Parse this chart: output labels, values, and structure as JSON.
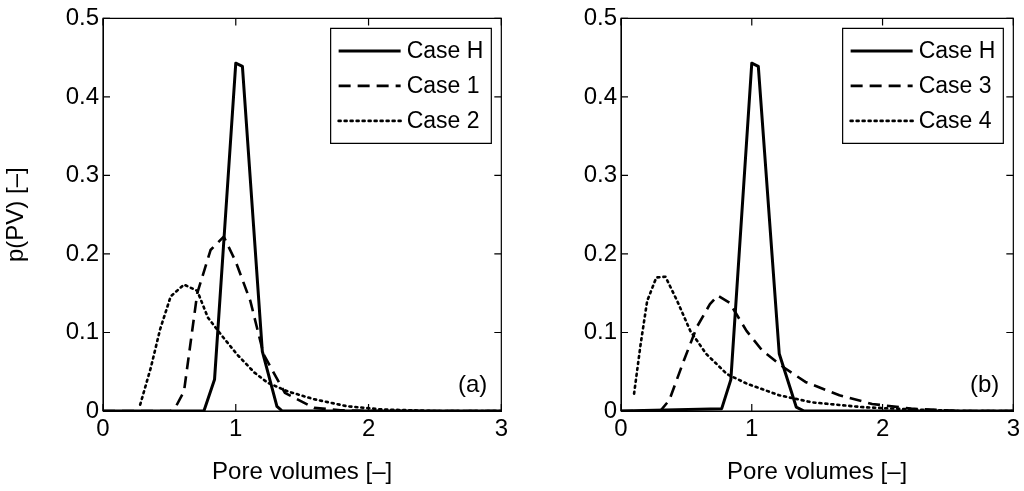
{
  "chart_data": [
    {
      "type": "line",
      "xlabel": "Pore volumes [–]",
      "ylabel": "p(PV) [–]",
      "xlim": [
        0,
        3
      ],
      "ylim": [
        0,
        0.5
      ],
      "xticks": [
        0,
        1,
        2,
        3
      ],
      "yticks": [
        0,
        0.1,
        0.2,
        0.3,
        0.4,
        0.5
      ],
      "legend": "top right",
      "annotations": [
        "(a)"
      ],
      "series": [
        {
          "name": "Case H",
          "color": "#000000",
          "line_style": "solid",
          "x": [
            0,
            0.76,
            0.84,
            1.0,
            1.05,
            1.2,
            1.31,
            1.35,
            3
          ],
          "values": [
            0,
            0,
            0.04,
            0.443,
            0.439,
            0.076,
            0.006,
            0,
            0
          ]
        },
        {
          "name": "Case 1",
          "color": "#000000",
          "line_style": "dashed",
          "x": [
            0,
            0.51,
            0.55,
            0.61,
            0.71,
            0.81,
            0.91,
            1.0,
            1.11,
            1.21,
            1.37,
            1.59,
            1.79,
            2.0,
            3
          ],
          "values": [
            0,
            0,
            0.006,
            0.025,
            0.15,
            0.205,
            0.222,
            0.19,
            0.14,
            0.072,
            0.023,
            0.004,
            0.001,
            0,
            0
          ]
        },
        {
          "name": "Case 2",
          "color": "#000000",
          "line_style": "dotted",
          "x": [
            0.28,
            0.36,
            0.43,
            0.51,
            0.61,
            0.71,
            0.79,
            0.89,
            1.01,
            1.14,
            1.24,
            1.39,
            1.59,
            1.84,
            2.1,
            2.5,
            3
          ],
          "values": [
            0.008,
            0.055,
            0.104,
            0.146,
            0.161,
            0.153,
            0.119,
            0.097,
            0.072,
            0.049,
            0.036,
            0.025,
            0.015,
            0.006,
            0.002,
            0,
            0
          ]
        }
      ]
    },
    {
      "type": "line",
      "xlabel": "Pore volumes [–]",
      "xlim": [
        0,
        3
      ],
      "ylim": [
        0,
        0.5
      ],
      "xticks": [
        0,
        1,
        2,
        3
      ],
      "yticks": [
        0,
        0.1,
        0.2,
        0.3,
        0.4,
        0.5
      ],
      "legend": "top right",
      "annotations": [
        "(b)"
      ],
      "series": [
        {
          "name": "Case H",
          "color": "#000000",
          "line_style": "solid",
          "x": [
            0,
            0.77,
            0.84,
            1.0,
            1.05,
            1.21,
            1.34,
            1.4,
            3
          ],
          "values": [
            0,
            0.003,
            0.04,
            0.443,
            0.439,
            0.073,
            0.005,
            0,
            0
          ]
        },
        {
          "name": "Case 3",
          "color": "#000000",
          "line_style": "dashed",
          "x": [
            0,
            0.3,
            0.37,
            0.48,
            0.58,
            0.68,
            0.74,
            0.83,
            0.96,
            1.08,
            1.24,
            1.41,
            1.67,
            1.92,
            2.22,
            2.6,
            3
          ],
          "values": [
            0,
            0,
            0.014,
            0.064,
            0.107,
            0.136,
            0.147,
            0.138,
            0.102,
            0.077,
            0.056,
            0.037,
            0.02,
            0.009,
            0.003,
            0,
            0
          ]
        },
        {
          "name": "Case 4",
          "color": "#000000",
          "line_style": "dotted",
          "x": [
            0.1,
            0.15,
            0.2,
            0.27,
            0.34,
            0.43,
            0.53,
            0.65,
            0.81,
            0.96,
            1.21,
            1.46,
            1.84,
            2.22,
            2.6,
            3
          ],
          "values": [
            0.022,
            0.085,
            0.14,
            0.17,
            0.171,
            0.14,
            0.102,
            0.073,
            0.047,
            0.035,
            0.02,
            0.011,
            0.005,
            0.002,
            0,
            0
          ]
        }
      ]
    }
  ]
}
